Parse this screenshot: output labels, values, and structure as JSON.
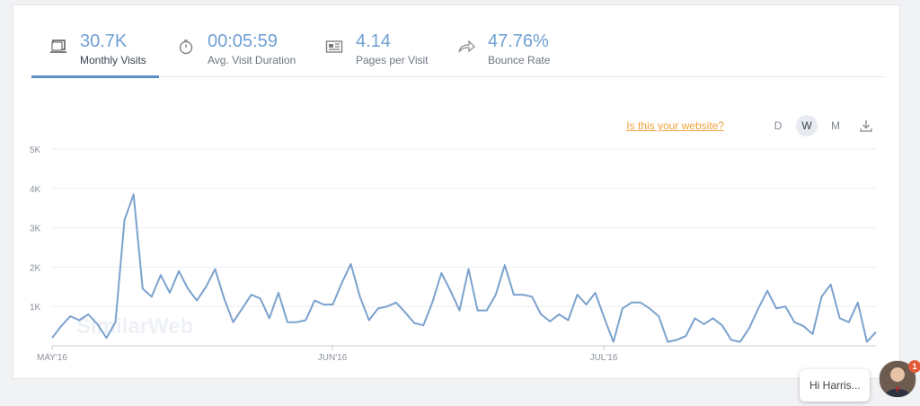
{
  "metrics": [
    {
      "value": "30.7K",
      "label": "Monthly Visits",
      "icon": "monitor-icon",
      "active": true
    },
    {
      "value": "00:05:59",
      "label": "Avg. Visit Duration",
      "icon": "stopwatch-icon",
      "active": false
    },
    {
      "value": "4.14",
      "label": "Pages per Visit",
      "icon": "pages-icon",
      "active": false
    },
    {
      "value": "47.76%",
      "label": "Bounce Rate",
      "icon": "bounce-arrow-icon",
      "active": false
    }
  ],
  "toolbar": {
    "site_link": "Is this your website?",
    "granularity": [
      "D",
      "W",
      "M"
    ],
    "selected_granularity": "W",
    "download_icon": "download-icon"
  },
  "watermark": "SimilarWeb",
  "chat": {
    "text": "Hi Harris...",
    "badge": "1"
  },
  "colors": {
    "accent": "#5b8fc7",
    "line": "#7ba2ce",
    "link": "#f0a23a",
    "badge": "#e35b36"
  },
  "chart_data": {
    "type": "line",
    "title": "",
    "xlabel": "",
    "ylabel": "",
    "ylim": [
      0,
      5000
    ],
    "yticks": [
      "1K",
      "2K",
      "3K",
      "4K",
      "5K"
    ],
    "xticks": [
      "MAY'16",
      "JUN'16",
      "JUL'16"
    ],
    "grid": true,
    "series": [
      {
        "values": [
          200,
          500,
          750,
          650,
          800,
          550,
          200,
          600,
          3200,
          3850,
          1450,
          1250,
          1800,
          1350,
          1900,
          1450,
          1150,
          1500,
          1950,
          1200,
          600,
          950,
          1300,
          1200,
          700,
          1350,
          600,
          600,
          650,
          1150,
          1050,
          1050,
          1600,
          2080,
          1250,
          650,
          950,
          1000,
          1100,
          850,
          580,
          520,
          1100,
          1850,
          1400,
          900,
          1950,
          900,
          900,
          1300,
          2050,
          1300,
          1300,
          1250,
          800,
          620,
          800,
          650,
          1300,
          1050,
          1350,
          700,
          100,
          950,
          1100,
          1100,
          950,
          750,
          100,
          150,
          250,
          700,
          550,
          700,
          520,
          150,
          100,
          450,
          950,
          1400,
          950,
          1000,
          600,
          500,
          300,
          1250,
          1560,
          700,
          600,
          1100,
          100,
          350
        ]
      }
    ]
  }
}
